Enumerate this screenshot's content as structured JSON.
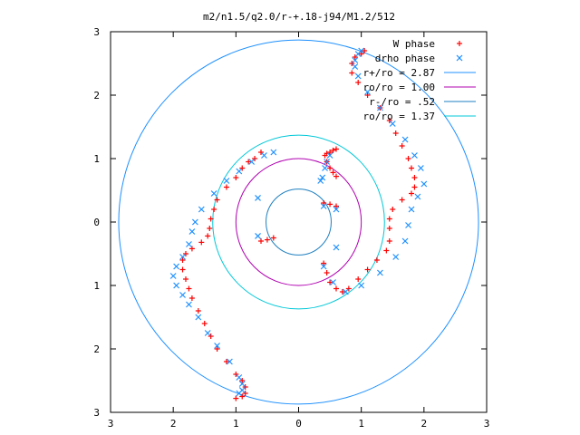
{
  "chart_data": {
    "type": "scatter",
    "title": "m2/n1.5/q2.0/r-+.18-j94/M1.2/512",
    "xlabel": "",
    "ylabel": "",
    "xlim": [
      -3,
      3
    ],
    "ylim": [
      -3,
      3
    ],
    "x_ticks": [
      -3,
      -2,
      -1,
      0,
      1,
      2,
      3
    ],
    "y_ticks": [
      -3,
      -2,
      -1,
      0,
      1,
      2,
      3
    ],
    "x_tick_labels": [
      "3",
      "2",
      "1",
      "0",
      "1",
      "2",
      "3"
    ],
    "y_tick_labels": [
      "3",
      "2",
      "1",
      "0",
      "1",
      "2",
      "3"
    ],
    "grid": false,
    "legend_position": "top-right",
    "colors": {
      "w_phase": "#ff0000",
      "drho_phase": "#1e90ff",
      "r_plus": "#1e90ff",
      "ro": "#b000b0",
      "r_minus": "#1e7fc0",
      "r_other": "#00c8d8"
    },
    "series": [
      {
        "name": "W phase",
        "kind": "points",
        "marker": "plus",
        "color": "#ff0000",
        "points": [
          [
            0.6,
            1.15
          ],
          [
            0.55,
            1.13
          ],
          [
            0.5,
            1.1
          ],
          [
            0.45,
            1.08
          ],
          [
            0.42,
            1.05
          ],
          [
            0.45,
            0.95
          ],
          [
            0.5,
            0.85
          ],
          [
            0.55,
            0.78
          ],
          [
            0.6,
            0.72
          ],
          [
            -0.6,
            1.1
          ],
          [
            -0.7,
            1.0
          ],
          [
            -0.8,
            0.95
          ],
          [
            -0.9,
            0.85
          ],
          [
            -1.0,
            0.7
          ],
          [
            -1.15,
            0.55
          ],
          [
            -1.3,
            0.35
          ],
          [
            -1.35,
            0.2
          ],
          [
            -1.4,
            0.05
          ],
          [
            -1.42,
            -0.1
          ],
          [
            -1.45,
            -0.22
          ],
          [
            -1.55,
            -0.32
          ],
          [
            -1.7,
            -0.42
          ],
          [
            -1.8,
            -0.5
          ],
          [
            -1.85,
            -0.6
          ],
          [
            -1.85,
            -0.75
          ],
          [
            -1.8,
            -0.9
          ],
          [
            -1.75,
            -1.05
          ],
          [
            -1.7,
            -1.2
          ],
          [
            -1.6,
            -1.4
          ],
          [
            -1.5,
            -1.6
          ],
          [
            -1.4,
            -1.8
          ],
          [
            -1.3,
            -2.0
          ],
          [
            -1.15,
            -2.2
          ],
          [
            -1.0,
            -2.4
          ],
          [
            -0.9,
            -2.5
          ],
          [
            -0.85,
            -2.6
          ],
          [
            -0.85,
            -2.7
          ],
          [
            -0.9,
            -2.75
          ],
          [
            -1.0,
            -2.78
          ],
          [
            0.4,
            -0.65
          ],
          [
            0.45,
            -0.8
          ],
          [
            0.5,
            -0.95
          ],
          [
            0.6,
            -1.05
          ],
          [
            0.7,
            -1.1
          ],
          [
            0.8,
            -1.05
          ],
          [
            0.95,
            -0.9
          ],
          [
            1.1,
            -0.75
          ],
          [
            1.25,
            -0.6
          ],
          [
            1.4,
            -0.45
          ],
          [
            1.45,
            -0.3
          ],
          [
            1.45,
            -0.1
          ],
          [
            1.45,
            0.05
          ],
          [
            1.5,
            0.2
          ],
          [
            1.65,
            0.35
          ],
          [
            1.8,
            0.45
          ],
          [
            1.85,
            0.55
          ],
          [
            1.85,
            0.7
          ],
          [
            1.8,
            0.85
          ],
          [
            1.75,
            1.0
          ],
          [
            1.65,
            1.2
          ],
          [
            1.55,
            1.4
          ],
          [
            1.45,
            1.6
          ],
          [
            1.3,
            1.8
          ],
          [
            1.1,
            2.0
          ],
          [
            0.95,
            2.2
          ],
          [
            0.85,
            2.35
          ],
          [
            0.85,
            2.5
          ],
          [
            0.9,
            2.6
          ],
          [
            1.0,
            2.65
          ],
          [
            1.05,
            2.7
          ],
          [
            0.4,
            0.3
          ],
          [
            0.5,
            0.28
          ],
          [
            0.6,
            0.25
          ],
          [
            -0.4,
            -0.25
          ],
          [
            -0.5,
            -0.28
          ],
          [
            -0.6,
            -0.3
          ]
        ]
      },
      {
        "name": "drho phase",
        "kind": "points",
        "marker": "cross",
        "color": "#1e90ff",
        "points": [
          [
            0.5,
            1.05
          ],
          [
            0.45,
            0.95
          ],
          [
            0.42,
            0.85
          ],
          [
            0.38,
            0.7
          ],
          [
            0.35,
            0.65
          ],
          [
            -0.4,
            1.1
          ],
          [
            -0.55,
            1.05
          ],
          [
            -0.75,
            0.95
          ],
          [
            -0.95,
            0.8
          ],
          [
            -1.15,
            0.65
          ],
          [
            -1.35,
            0.45
          ],
          [
            -1.55,
            0.2
          ],
          [
            -1.65,
            0.0
          ],
          [
            -1.7,
            -0.15
          ],
          [
            -1.75,
            -0.35
          ],
          [
            -1.85,
            -0.55
          ],
          [
            -1.95,
            -0.7
          ],
          [
            -2.0,
            -0.85
          ],
          [
            -1.95,
            -1.0
          ],
          [
            -1.85,
            -1.15
          ],
          [
            -1.75,
            -1.3
          ],
          [
            -1.6,
            -1.5
          ],
          [
            -1.45,
            -1.75
          ],
          [
            -1.3,
            -1.95
          ],
          [
            -1.1,
            -2.2
          ],
          [
            -0.95,
            -2.45
          ],
          [
            -0.9,
            -2.55
          ],
          [
            -0.9,
            -2.65
          ],
          [
            -0.95,
            -2.7
          ],
          [
            0.4,
            -0.7
          ],
          [
            0.55,
            -0.95
          ],
          [
            0.75,
            -1.1
          ],
          [
            1.0,
            -1.0
          ],
          [
            1.3,
            -0.8
          ],
          [
            1.55,
            -0.55
          ],
          [
            1.7,
            -0.3
          ],
          [
            1.75,
            -0.05
          ],
          [
            1.8,
            0.2
          ],
          [
            1.9,
            0.4
          ],
          [
            2.0,
            0.6
          ],
          [
            1.95,
            0.85
          ],
          [
            1.85,
            1.05
          ],
          [
            1.7,
            1.3
          ],
          [
            1.5,
            1.55
          ],
          [
            1.3,
            1.8
          ],
          [
            1.1,
            2.05
          ],
          [
            0.95,
            2.3
          ],
          [
            0.9,
            2.45
          ],
          [
            0.9,
            2.55
          ],
          [
            0.95,
            2.65
          ],
          [
            1.0,
            2.7
          ],
          [
            0.6,
            -0.4
          ],
          [
            0.4,
            0.25
          ],
          [
            0.6,
            0.2
          ],
          [
            -0.65,
            0.38
          ],
          [
            -0.65,
            -0.22
          ]
        ]
      },
      {
        "name": "r+/ro = 2.87",
        "kind": "circle",
        "radius": 2.87,
        "color": "#1e90ff"
      },
      {
        "name": "ro/ro = 1.00",
        "kind": "circle",
        "radius": 1.0,
        "color": "#b000b0"
      },
      {
        "name": "r-/ro = .52",
        "kind": "circle",
        "radius": 0.52,
        "color": "#1e7fc0"
      },
      {
        "name": "ro/ro = 1.37",
        "kind": "circle",
        "radius": 1.37,
        "color": "#00c8d8"
      }
    ]
  }
}
